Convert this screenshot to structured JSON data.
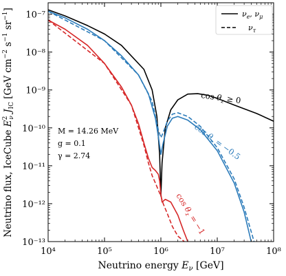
{
  "chart_data": {
    "type": "line",
    "xlabel": "Neutrino energy E_ν [GeV]",
    "ylabel": "Neutrino flux, IceCube E²_ν J_IC [GeV cm⁻² s⁻¹ sr⁻¹]",
    "xscale": "log",
    "yscale": "log",
    "xlim": [
      10000,
      100000000
    ],
    "ylim": [
      1e-13,
      2e-07
    ],
    "x_ticks": [
      "10⁴",
      "10⁵",
      "10⁶",
      "10⁷",
      "10⁸"
    ],
    "y_ticks": [
      "10⁻¹³",
      "10⁻¹²",
      "10⁻¹¹",
      "10⁻¹⁰",
      "10⁻⁹",
      "10⁻⁸",
      "10⁻⁷"
    ],
    "legend": {
      "position": "top-right",
      "entries": [
        {
          "label": "ν_e, ν_μ",
          "style": "solid"
        },
        {
          "label": "ν_τ",
          "style": "dashed"
        }
      ]
    },
    "parameters": {
      "line1": "M = 14.26 MeV",
      "line2": "g = 0.1",
      "line3": "γ = 2.74"
    },
    "colors": {
      "cos0": "#000000",
      "cosm05": "#2b7bba",
      "cosm1": "#d62728"
    },
    "series": [
      {
        "label": "cos θ_z ≥ 0",
        "color": "#000000",
        "style": "solid",
        "x": [
          10000,
          20000,
          50000,
          100000,
          200000,
          500000,
          700000,
          850000,
          950000,
          1000000,
          1050000,
          1200000,
          1500000,
          2000000,
          3000000,
          4500000,
          7000000,
          10000000,
          20000000,
          50000000,
          100000000
        ],
        "y": [
          1.3e-07,
          9e-08,
          5e-08,
          3e-08,
          1.5e-08,
          3.5e-09,
          1e-09,
          2e-10,
          2e-11,
          1.6e-12,
          1.2e-11,
          1e-10,
          3e-10,
          5.5e-10,
          7.8e-10,
          8e-10,
          7.2e-10,
          6e-10,
          4e-10,
          2.4e-10,
          1.5e-10
        ]
      },
      {
        "label": "cos θ_z = −0.5",
        "color": "#2b7bba",
        "style": "solid",
        "x": [
          10000,
          20000,
          50000,
          100000,
          200000,
          400000,
          600000,
          800000,
          900000,
          1000000,
          1100000,
          1300000,
          1600000,
          2000000,
          3000000,
          5000000,
          10000000,
          20000000,
          30000000,
          40000000
        ],
        "y": [
          1.2e-07,
          8e-08,
          4e-08,
          2e-08,
          8e-09,
          2.5e-09,
          8e-10,
          1.8e-10,
          6e-11,
          2e-11,
          4e-11,
          1.1e-10,
          1.8e-10,
          2e-10,
          1.6e-10,
          9e-11,
          2.5e-11,
          3.5e-12,
          6e-13,
          1e-13
        ]
      },
      {
        "label": "cos θ_z = −0.5 (ν_τ)",
        "color": "#2b7bba",
        "style": "dashed",
        "x": [
          10000,
          100000,
          400000,
          700000,
          900000,
          1000000,
          1100000,
          1300000,
          1600000,
          2000000,
          3000000,
          5000000,
          10000000,
          20000000,
          30000000,
          45000000
        ],
        "y": [
          1.2e-07,
          2e-08,
          2.5e-09,
          5e-10,
          9e-11,
          5.5e-11,
          7.5e-11,
          1.5e-10,
          2.3e-10,
          2.5e-10,
          2e-10,
          1.1e-10,
          3e-11,
          4.5e-12,
          8e-13,
          1e-13
        ]
      },
      {
        "label": "cos θ_z = −1",
        "color": "#d62728",
        "style": "solid",
        "x": [
          10000,
          20000,
          50000,
          100000,
          200000,
          300000,
          400000,
          500000,
          600000,
          700000,
          800000,
          900000,
          950000,
          1000000,
          1050000,
          1200000,
          1500000,
          2000000,
          2500000,
          3000000
        ],
        "y": [
          7e-08,
          4e-08,
          1.5e-08,
          5e-09,
          1.2e-09,
          4e-10,
          1.3e-10,
          4e-11,
          1.6e-11,
          9e-12,
          7.5e-12,
          6e-12,
          4e-12,
          1.8e-12,
          1.1e-12,
          1.3e-12,
          1.1e-12,
          5e-13,
          2e-13,
          1e-13
        ]
      },
      {
        "label": "cos θ_z = −1 (ν_τ)",
        "color": "#d62728",
        "style": "dashed",
        "x": [
          10000,
          100000,
          300000,
          500000,
          600000,
          700000,
          800000,
          900000,
          1000000,
          1100000,
          1300000,
          1600000,
          2000000,
          2600000
        ],
        "y": [
          7e-08,
          5e-09,
          4e-10,
          3.5e-11,
          1.2e-11,
          5.5e-12,
          3.5e-12,
          2.3e-12,
          1.6e-12,
          1e-12,
          5.5e-13,
          2.5e-13,
          1.4e-13,
          1e-13
        ]
      }
    ],
    "annotations": [
      {
        "text": "cos θ_z ≥ 0",
        "color": "#000000"
      },
      {
        "text": "cos θ_z = −0.5",
        "color": "#2b7bba"
      },
      {
        "text": "cos θ_z = −1",
        "color": "#d62728"
      }
    ]
  }
}
